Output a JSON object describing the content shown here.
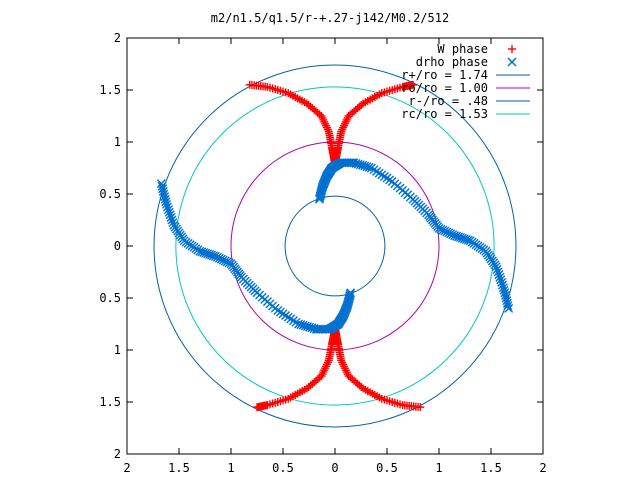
{
  "chart_data": {
    "type": "scatter",
    "title": "m2/n1.5/q1.5/r-+.27-j142/M0.2/512",
    "xlabel": "",
    "ylabel": "",
    "xlim": [
      -2,
      2
    ],
    "ylim": [
      -2,
      2
    ],
    "x_ticks": [
      {
        "value": -2,
        "label": "2"
      },
      {
        "value": -1.5,
        "label": "1.5"
      },
      {
        "value": -1,
        "label": "1"
      },
      {
        "value": -0.5,
        "label": "0.5"
      },
      {
        "value": 0,
        "label": "0"
      },
      {
        "value": 0.5,
        "label": "0.5"
      },
      {
        "value": 1,
        "label": "1"
      },
      {
        "value": 1.5,
        "label": "1.5"
      },
      {
        "value": 2,
        "label": "2"
      }
    ],
    "y_ticks": [
      {
        "value": 2,
        "label": "2"
      },
      {
        "value": 1.5,
        "label": "1.5"
      },
      {
        "value": 1,
        "label": "1"
      },
      {
        "value": 0.5,
        "label": "0.5"
      },
      {
        "value": 0,
        "label": "0"
      },
      {
        "value": -0.5,
        "label": "0.5"
      },
      {
        "value": -1,
        "label": "1"
      },
      {
        "value": -1.5,
        "label": "1.5"
      },
      {
        "value": -2,
        "label": "2"
      }
    ],
    "grid": false,
    "legend_position": "top-right",
    "series": [
      {
        "name": "W phase",
        "marker": "plus",
        "color": "#ff0000",
        "x": [
          -0.82,
          -0.65,
          -0.45,
          -0.27,
          -0.13,
          -0.06,
          -0.03,
          -0.01,
          0.0,
          0.01,
          0.03,
          0.06,
          0.13,
          0.27,
          0.45,
          0.65,
          0.75,
          0.82,
          0.65,
          0.45,
          0.27,
          0.13,
          0.06,
          0.03,
          0.01,
          0.0,
          -0.01,
          -0.03,
          -0.06,
          -0.13,
          -0.27,
          -0.45,
          -0.65,
          -0.75
        ],
        "y": [
          1.55,
          1.53,
          1.47,
          1.37,
          1.25,
          1.1,
          0.95,
          0.85,
          0.8,
          0.85,
          0.95,
          1.1,
          1.25,
          1.37,
          1.47,
          1.53,
          1.55,
          -1.55,
          -1.53,
          -1.47,
          -1.37,
          -1.25,
          -1.1,
          -0.95,
          -0.85,
          -0.8,
          -0.85,
          -0.95,
          -1.1,
          -1.25,
          -1.37,
          -1.47,
          -1.53,
          -1.55
        ]
      },
      {
        "name": "drho phase",
        "marker": "cross",
        "color": "#0070d0",
        "x": [
          -0.15,
          -0.12,
          -0.08,
          -0.03,
          0.05,
          0.18,
          0.35,
          0.55,
          0.75,
          0.9,
          1.0,
          1.15,
          1.3,
          1.45,
          1.55,
          1.62,
          1.67,
          0.15,
          0.12,
          0.08,
          0.03,
          -0.05,
          -0.18,
          -0.35,
          -0.55,
          -0.75,
          -0.9,
          -1.0,
          -1.15,
          -1.3,
          -1.45,
          -1.55,
          -1.62,
          -1.67
        ],
        "y": [
          0.45,
          0.57,
          0.67,
          0.75,
          0.8,
          0.8,
          0.75,
          0.62,
          0.45,
          0.3,
          0.17,
          0.1,
          0.05,
          -0.05,
          -0.2,
          -0.4,
          -0.6,
          -0.45,
          -0.57,
          -0.67,
          -0.75,
          -0.8,
          -0.8,
          -0.75,
          -0.62,
          -0.45,
          -0.3,
          -0.17,
          -0.1,
          -0.05,
          0.05,
          0.2,
          0.4,
          0.6
        ]
      },
      {
        "name": "r+/ro = 1.74",
        "shape": "circle",
        "radius": 1.74,
        "color": "#0060b0"
      },
      {
        "name": "ro/ro = 1.00",
        "shape": "circle",
        "radius": 1.0,
        "color": "#b000b0"
      },
      {
        "name": "r-/ro = .48",
        "shape": "circle",
        "radius": 0.48,
        "color": "#0060b0"
      },
      {
        "name": "rc/ro = 1.53",
        "shape": "circle",
        "radius": 1.53,
        "color": "#00c8c8"
      }
    ]
  }
}
